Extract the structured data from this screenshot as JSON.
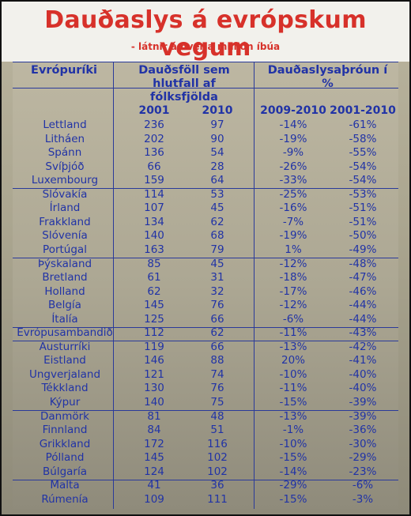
{
  "chart_data": {
    "type": "table",
    "title": "Dauðaslys á evrópskum vegum",
    "subtitle": "- látnir á hverja milljón íbúa",
    "headers": {
      "country": "Evrópuríki",
      "deaths_group": "Dauðsföll sem hlutfall af fólksfjölda",
      "trend_group": "Dauðaslysaþróun í %"
    },
    "columns": [
      "2001",
      "2010",
      "2009-2010",
      "2001-2010"
    ],
    "rows": [
      {
        "country": "Lettland",
        "v2001": "236",
        "v2010": "97",
        "c0910": "-14%",
        "c0110": "-61%"
      },
      {
        "country": "Litháen",
        "v2001": "202",
        "v2010": "90",
        "c0910": "-19%",
        "c0110": "-58%"
      },
      {
        "country": "Spánn",
        "v2001": "136",
        "v2010": "54",
        "c0910": "-9%",
        "c0110": "-55%"
      },
      {
        "country": "Svíþjóð",
        "v2001": "66",
        "v2010": "28",
        "c0910": "-26%",
        "c0110": "-54%"
      },
      {
        "country": "Luxembourg",
        "v2001": "159",
        "v2010": "64",
        "c0910": "-33%",
        "c0110": "-54%"
      },
      {
        "country": "Slóvakía",
        "v2001": "114",
        "v2010": "53",
        "c0910": "-25%",
        "c0110": "-53%"
      },
      {
        "country": "Írland",
        "v2001": "107",
        "v2010": "45",
        "c0910": "-16%",
        "c0110": "-51%"
      },
      {
        "country": "Frakkland",
        "v2001": "134",
        "v2010": "62",
        "c0910": "-7%",
        "c0110": "-51%"
      },
      {
        "country": "Slóvenía",
        "v2001": "140",
        "v2010": "68",
        "c0910": "-19%",
        "c0110": "-50%"
      },
      {
        "country": "Portúgal",
        "v2001": "163",
        "v2010": "79",
        "c0910": "1%",
        "c0110": "-49%"
      },
      {
        "country": "Þýskaland",
        "v2001": "85",
        "v2010": "45",
        "c0910": "-12%",
        "c0110": "-48%"
      },
      {
        "country": "Bretland",
        "v2001": "61",
        "v2010": "31",
        "c0910": "-18%",
        "c0110": "-47%"
      },
      {
        "country": "Holland",
        "v2001": "62",
        "v2010": "32",
        "c0910": "-17%",
        "c0110": "-46%"
      },
      {
        "country": "Belgía",
        "v2001": "145",
        "v2010": "76",
        "c0910": "-12%",
        "c0110": "-44%"
      },
      {
        "country": "Ítalía",
        "v2001": "125",
        "v2010": "66",
        "c0910": "-6%",
        "c0110": "-44%"
      },
      {
        "country": "Evrópusambandið",
        "v2001": "112",
        "v2010": "62",
        "c0910": "-11%",
        "c0110": "-43%"
      },
      {
        "country": "Austurríki",
        "v2001": "119",
        "v2010": "66",
        "c0910": "-13%",
        "c0110": "-42%"
      },
      {
        "country": "Eistland",
        "v2001": "146",
        "v2010": "88",
        "c0910": "20%",
        "c0110": "-41%"
      },
      {
        "country": "Ungverjaland",
        "v2001": "121",
        "v2010": "74",
        "c0910": "-10%",
        "c0110": "-40%"
      },
      {
        "country": "Tékkland",
        "v2001": "130",
        "v2010": "76",
        "c0910": "-11%",
        "c0110": "-40%"
      },
      {
        "country": "Kýpur",
        "v2001": "140",
        "v2010": "75",
        "c0910": "-15%",
        "c0110": "-39%"
      },
      {
        "country": "Danmörk",
        "v2001": "81",
        "v2010": "48",
        "c0910": "-13%",
        "c0110": "-39%"
      },
      {
        "country": "Finnland",
        "v2001": "84",
        "v2010": "51",
        "c0910": "-1%",
        "c0110": "-36%"
      },
      {
        "country": "Grikkland",
        "v2001": "172",
        "v2010": "116",
        "c0910": "-10%",
        "c0110": "-30%"
      },
      {
        "country": "Pólland",
        "v2001": "145",
        "v2010": "102",
        "c0910": "-15%",
        "c0110": "-29%"
      },
      {
        "country": "Búlgaría",
        "v2001": "124",
        "v2010": "102",
        "c0910": "-14%",
        "c0110": "-23%"
      },
      {
        "country": "Malta",
        "v2001": "41",
        "v2010": "36",
        "c0910": "-29%",
        "c0110": "-6%"
      },
      {
        "country": "Rúmenía",
        "v2001": "109",
        "v2010": "111",
        "c0910": "-15%",
        "c0110": "-3%"
      }
    ],
    "group_breaks_after_rows": [
      5,
      10,
      15,
      16,
      21,
      26
    ],
    "colors": {
      "title": "#d7312a",
      "text": "#2133a6",
      "rules": "#2a3a9a"
    }
  }
}
